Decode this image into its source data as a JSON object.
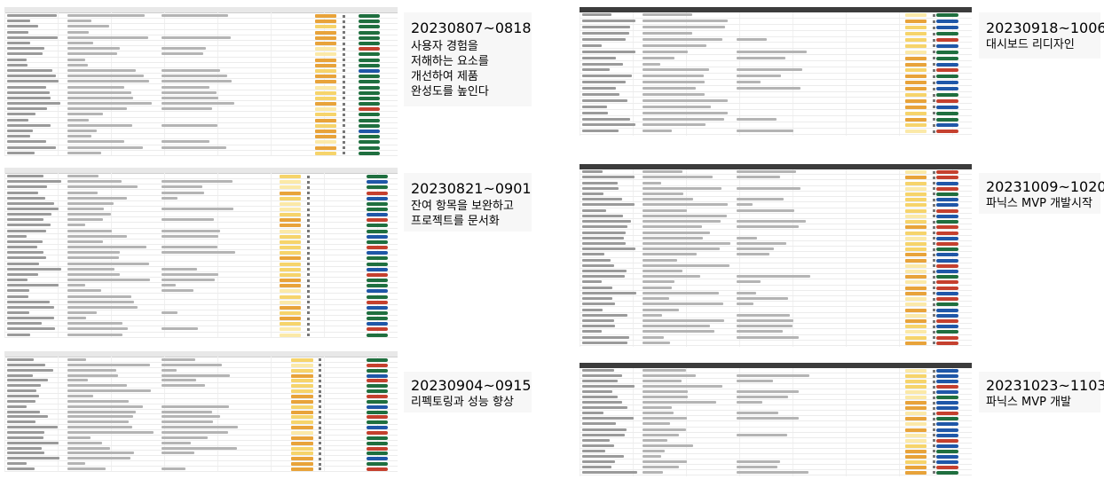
{
  "sprints": [
    {
      "id": "s1",
      "period": "20230807~0818",
      "description": "사용자 경험을\n저해하는 요소를\n개선하여 제품\n완성도를 높인다"
    },
    {
      "id": "s2",
      "period": "20230821~0901",
      "description": "잔여 항목을 보완하고\n프로젝트를 문서화"
    },
    {
      "id": "s3",
      "period": "20230904~0915",
      "description": "리펙토링과 성능 향상"
    },
    {
      "id": "s4",
      "period": "20230918~1006",
      "description": "대시보드 리디자인"
    },
    {
      "id": "s5",
      "period": "20231009~1020",
      "description": "파닉스 MVP 개발시작"
    },
    {
      "id": "s6",
      "period": "20231023~1103",
      "description": "파닉스 MVP 개발"
    }
  ],
  "colors": {
    "story_orange": "#e8a33a",
    "story_yellow": "#f6d46b",
    "story_pale": "#fbe9a8",
    "status_green": "#1f6f3f",
    "status_blue": "#1f57a8",
    "status_red": "#c5402e",
    "header_dark": "#3c3c3c"
  }
}
